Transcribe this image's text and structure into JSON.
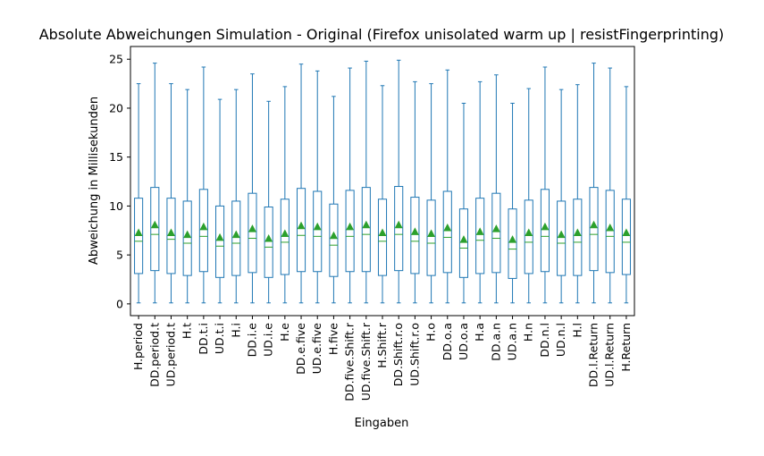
{
  "chart_data": {
    "type": "boxplot",
    "title": "Absolute Abweichungen Simulation - Original (Firefox unisolated warm up | resistFingerprinting)",
    "xlabel": "Eingaben",
    "ylabel": "Abweichung in Millisekunden",
    "ylim": [
      -1.2,
      26.3
    ],
    "yticks": [
      0,
      5,
      10,
      15,
      20,
      25
    ],
    "grid": false,
    "categories": [
      "H.period",
      "DD.period.t",
      "UD.period.t",
      "H.t",
      "DD.t.i",
      "UD.t.i",
      "H.i",
      "DD.i.e",
      "UD.i.e",
      "H.e",
      "DD.e.five",
      "UD.e.five",
      "H.five",
      "DD.five.Shift.r",
      "UD.five.Shift.r",
      "H.Shift.r",
      "DD.Shift.r.o",
      "UD.Shift.r.o",
      "H.o",
      "DD.o.a",
      "UD.o.a",
      "H.a",
      "DD.a.n",
      "UD.a.n",
      "H.n",
      "DD.n.l",
      "UD.n.l",
      "H.l",
      "DD.l.Return",
      "UD.l.Return",
      "H.Return"
    ],
    "boxes": [
      {
        "whislo": 0.1,
        "q1": 3.1,
        "med": 6.4,
        "mean": 7.3,
        "q3": 10.8,
        "whishi": 22.5
      },
      {
        "whislo": 0.1,
        "q1": 3.4,
        "med": 7.1,
        "mean": 8.1,
        "q3": 11.9,
        "whishi": 24.6
      },
      {
        "whislo": 0.1,
        "q1": 3.1,
        "med": 6.6,
        "mean": 7.3,
        "q3": 10.8,
        "whishi": 22.5
      },
      {
        "whislo": 0.1,
        "q1": 2.9,
        "med": 6.2,
        "mean": 7.1,
        "q3": 10.5,
        "whishi": 21.9
      },
      {
        "whislo": 0.1,
        "q1": 3.3,
        "med": 6.9,
        "mean": 7.9,
        "q3": 11.7,
        "whishi": 24.2
      },
      {
        "whislo": 0.1,
        "q1": 2.7,
        "med": 5.9,
        "mean": 6.8,
        "q3": 10.0,
        "whishi": 20.9
      },
      {
        "whislo": 0.1,
        "q1": 2.9,
        "med": 6.2,
        "mean": 7.1,
        "q3": 10.5,
        "whishi": 21.9
      },
      {
        "whislo": 0.1,
        "q1": 3.2,
        "med": 6.7,
        "mean": 7.7,
        "q3": 11.3,
        "whishi": 23.5
      },
      {
        "whislo": 0.1,
        "q1": 2.7,
        "med": 5.8,
        "mean": 6.7,
        "q3": 9.9,
        "whishi": 20.7
      },
      {
        "whislo": 0.1,
        "q1": 3.0,
        "med": 6.3,
        "mean": 7.2,
        "q3": 10.7,
        "whishi": 22.2
      },
      {
        "whislo": 0.1,
        "q1": 3.3,
        "med": 7.0,
        "mean": 8.0,
        "q3": 11.8,
        "whishi": 24.5
      },
      {
        "whislo": 0.1,
        "q1": 3.3,
        "med": 6.9,
        "mean": 7.9,
        "q3": 11.5,
        "whishi": 23.8
      },
      {
        "whislo": 0.1,
        "q1": 2.8,
        "med": 6.0,
        "mean": 7.0,
        "q3": 10.2,
        "whishi": 21.2
      },
      {
        "whislo": 0.1,
        "q1": 3.3,
        "med": 6.9,
        "mean": 7.9,
        "q3": 11.6,
        "whishi": 24.1
      },
      {
        "whislo": 0.1,
        "q1": 3.3,
        "med": 7.1,
        "mean": 8.1,
        "q3": 11.9,
        "whishi": 24.8
      },
      {
        "whislo": 0.1,
        "q1": 2.9,
        "med": 6.4,
        "mean": 7.3,
        "q3": 10.7,
        "whishi": 22.3
      },
      {
        "whislo": 0.1,
        "q1": 3.4,
        "med": 7.1,
        "mean": 8.1,
        "q3": 12.0,
        "whishi": 24.9
      },
      {
        "whislo": 0.1,
        "q1": 3.1,
        "med": 6.4,
        "mean": 7.4,
        "q3": 10.9,
        "whishi": 22.7
      },
      {
        "whislo": 0.1,
        "q1": 2.9,
        "med": 6.2,
        "mean": 7.2,
        "q3": 10.6,
        "whishi": 22.5
      },
      {
        "whislo": 0.1,
        "q1": 3.2,
        "med": 6.8,
        "mean": 7.8,
        "q3": 11.5,
        "whishi": 23.9
      },
      {
        "whislo": 0.1,
        "q1": 2.7,
        "med": 5.7,
        "mean": 6.6,
        "q3": 9.7,
        "whishi": 20.5
      },
      {
        "whislo": 0.1,
        "q1": 3.1,
        "med": 6.5,
        "mean": 7.4,
        "q3": 10.8,
        "whishi": 22.7
      },
      {
        "whislo": 0.1,
        "q1": 3.2,
        "med": 6.7,
        "mean": 7.7,
        "q3": 11.3,
        "whishi": 23.4
      },
      {
        "whislo": 0.1,
        "q1": 2.6,
        "med": 5.6,
        "mean": 6.6,
        "q3": 9.7,
        "whishi": 20.5
      },
      {
        "whislo": 0.1,
        "q1": 3.1,
        "med": 6.3,
        "mean": 7.3,
        "q3": 10.6,
        "whishi": 22.0
      },
      {
        "whislo": 0.1,
        "q1": 3.3,
        "med": 6.9,
        "mean": 7.9,
        "q3": 11.7,
        "whishi": 24.2
      },
      {
        "whislo": 0.1,
        "q1": 2.9,
        "med": 6.2,
        "mean": 7.1,
        "q3": 10.5,
        "whishi": 21.9
      },
      {
        "whislo": 0.1,
        "q1": 2.9,
        "med": 6.3,
        "mean": 7.3,
        "q3": 10.7,
        "whishi": 22.4
      },
      {
        "whislo": 0.1,
        "q1": 3.4,
        "med": 7.1,
        "mean": 8.1,
        "q3": 11.9,
        "whishi": 24.6
      },
      {
        "whislo": 0.1,
        "q1": 3.2,
        "med": 6.9,
        "mean": 7.8,
        "q3": 11.6,
        "whishi": 24.1
      },
      {
        "whislo": 0.1,
        "q1": 3.0,
        "med": 6.3,
        "mean": 7.3,
        "q3": 10.7,
        "whishi": 22.2
      }
    ],
    "colors": {
      "box": "#1f77b4",
      "median": "#2ca02c",
      "mean": "#2ca02c",
      "axis": "#000000"
    }
  }
}
